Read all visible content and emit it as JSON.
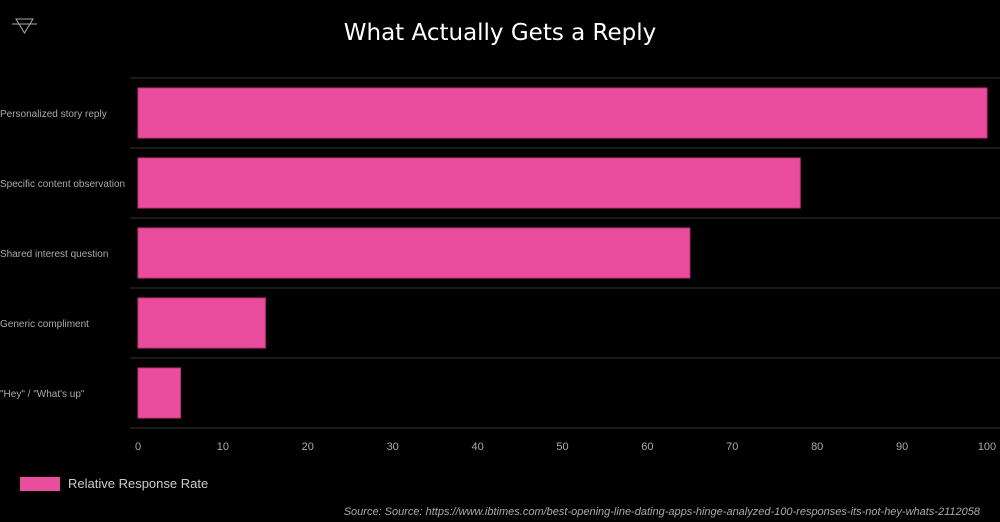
{
  "chart_data": {
    "type": "bar",
    "orientation": "horizontal",
    "title": "What Actually Gets a Reply",
    "categories": [
      "Personalized story reply",
      "Specific content observation",
      "Shared interest question",
      "Generic compliment",
      "\"Hey\" / \"What's up\""
    ],
    "series": [
      {
        "name": "Relative Response Rate",
        "values": [
          100,
          78,
          65,
          15,
          5
        ]
      }
    ],
    "xlim": [
      0,
      100
    ],
    "xticks": [
      0,
      10,
      20,
      30,
      40,
      50,
      60,
      70,
      80,
      90,
      100
    ],
    "grid": "horizontal separators",
    "legend": "bottom-left",
    "color": "#ea4c9e"
  },
  "source": "Source: Source: https://www.ibtimes.com/best-opening-line-dating-apps-hinge-analyzed-100-responses-its-not-hey-whats-2112058",
  "logo_icon": "triangle-logo-icon"
}
